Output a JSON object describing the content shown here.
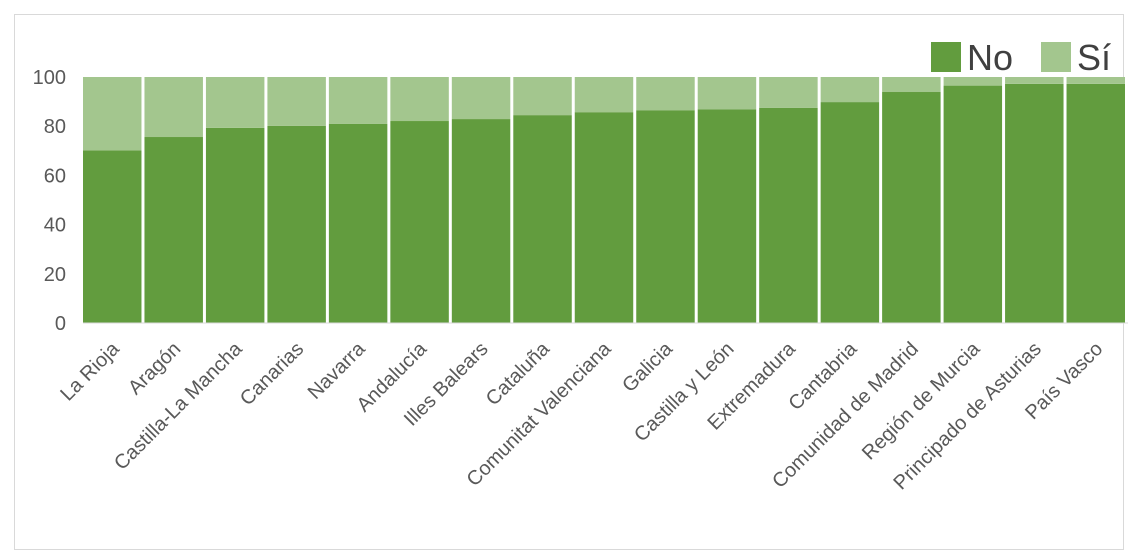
{
  "chart_data": {
    "type": "bar",
    "stacked": true,
    "categories": [
      "La Rioja",
      "Aragón",
      "Castilla-La Mancha",
      "Canarias",
      "Navarra",
      "Andalucía",
      "Illes Balears",
      "Cataluña",
      "Comunitat Valenciana",
      "Galicia",
      "Castilla y León",
      "Extremadura",
      "Cantabria",
      "Comunidad de Madrid",
      "Región de Murcia",
      "Principado de Asturias",
      "País Vasco"
    ],
    "series": [
      {
        "name": "No",
        "color": "#629C3E",
        "values": [
          70.2,
          75.6,
          79.3,
          80.1,
          81.0,
          82.1,
          82.9,
          84.5,
          85.7,
          86.5,
          86.9,
          87.5,
          89.8,
          93.9,
          96.5,
          97.2,
          97.2
        ]
      },
      {
        "name": "Sí",
        "color": "#A3C68E",
        "values": [
          29.8,
          24.4,
          20.7,
          19.9,
          19.0,
          17.9,
          17.1,
          15.5,
          14.3,
          13.5,
          13.1,
          12.5,
          10.2,
          6.1,
          3.5,
          2.8,
          2.8
        ]
      }
    ],
    "yticks": [
      0,
      20,
      40,
      60,
      80,
      100
    ],
    "ylim": [
      0,
      100
    ],
    "grid": false,
    "legend": "top-right"
  }
}
